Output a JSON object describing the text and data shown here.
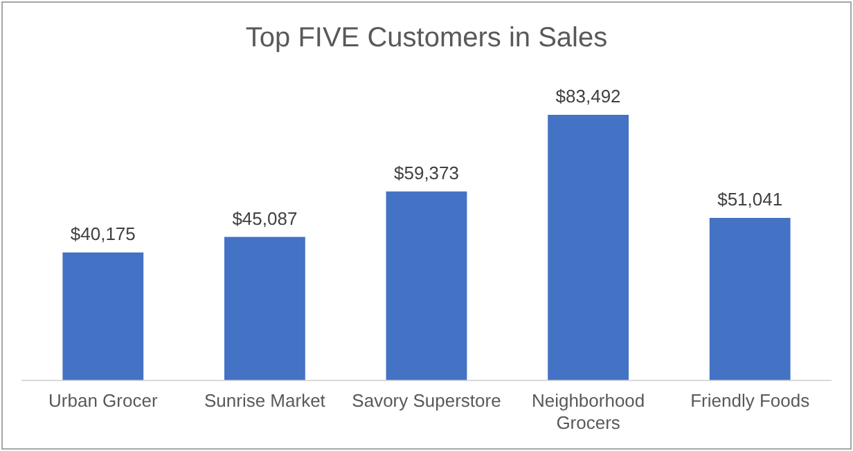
{
  "chart_data": {
    "type": "bar",
    "title": "Top FIVE Customers in Sales",
    "categories": [
      "Urban Grocer",
      "Sunrise Market",
      "Savory Superstore",
      "Neighborhood Grocers",
      "Friendly Foods"
    ],
    "values": [
      40175,
      45087,
      59373,
      83492,
      51041
    ],
    "value_labels": [
      "$40,175",
      "$45,087",
      "$59,373",
      "$83,492",
      "$51,041"
    ],
    "color": "#4472c4",
    "grid": false,
    "legend": false
  }
}
